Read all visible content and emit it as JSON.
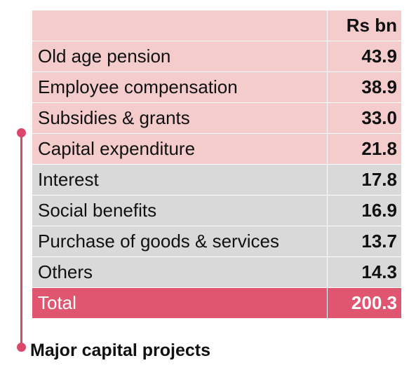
{
  "table": {
    "header": {
      "label": "",
      "value": "Rs bn"
    },
    "rows": [
      {
        "label": "Old age pension",
        "value": "43.9",
        "group": "major"
      },
      {
        "label": "Employee compensation",
        "value": "38.9",
        "group": "major"
      },
      {
        "label": "Subsidies & grants",
        "value": "33.0",
        "group": "major"
      },
      {
        "label": "Capital expenditure",
        "value": "21.8",
        "group": "major"
      },
      {
        "label": "Interest",
        "value": "17.8",
        "group": "other"
      },
      {
        "label": "Social benefits",
        "value": "16.9",
        "group": "other"
      },
      {
        "label": "Purchase of goods & services",
        "value": "13.7",
        "group": "other"
      },
      {
        "label": "Others",
        "value": "14.3",
        "group": "other"
      }
    ],
    "total": {
      "label": "Total",
      "value": "200.3"
    }
  },
  "annotation": {
    "caption": "Major capital projects"
  },
  "colors": {
    "major_row": "#f4cccc",
    "other_row": "#d9d9d9",
    "total_row": "#e05670",
    "bracket": "#d9486a"
  }
}
